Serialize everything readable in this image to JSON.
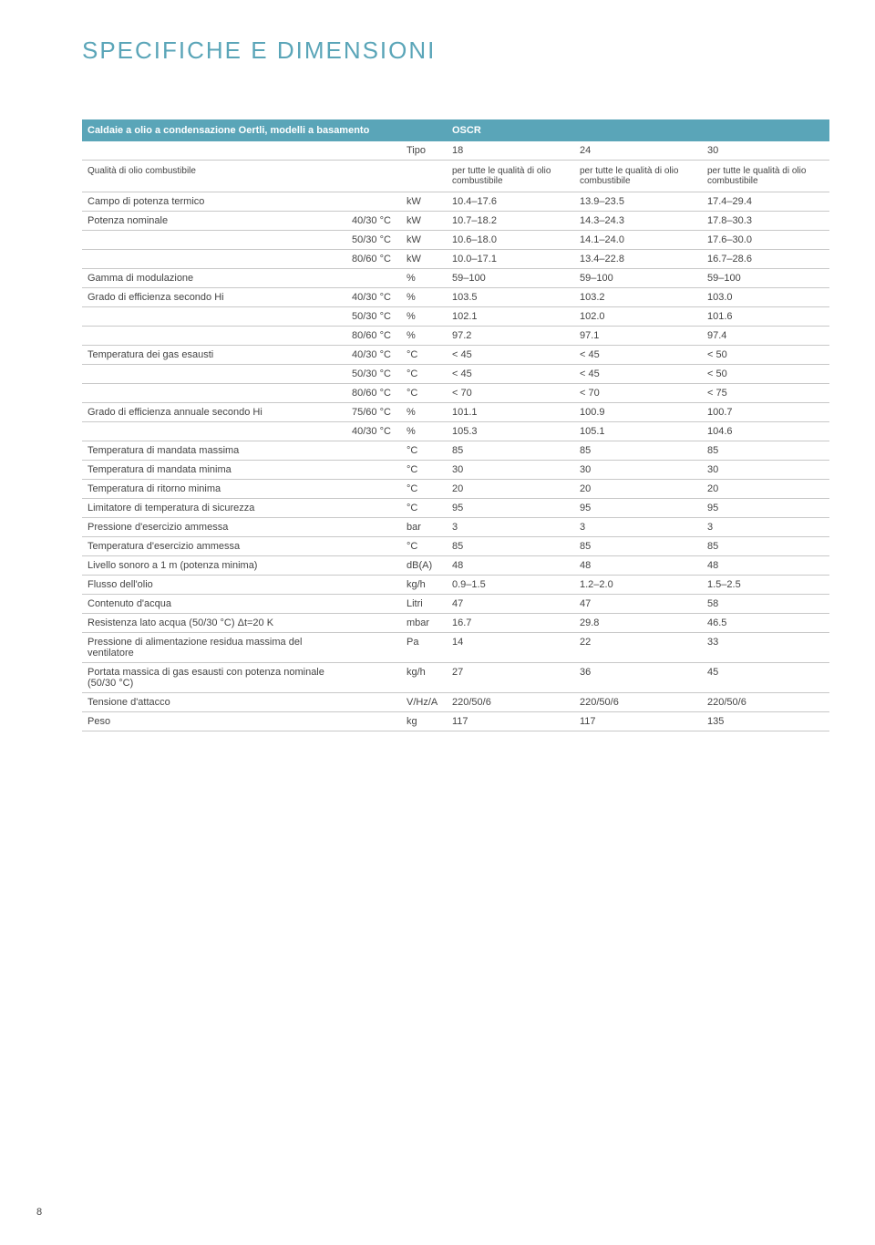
{
  "title": "SPECIFICHE E DIMENSIONI",
  "page_number": "8",
  "colors": {
    "accent": "#5aa5b8",
    "header_text": "#ffffff",
    "text": "#444444",
    "border": "#c8c8c8",
    "background": "#ffffff"
  },
  "table": {
    "header_left": "Caldaie a olio a condensazione Oertli, modelli a basamento",
    "header_right": "OSCR",
    "tipo_label": "Tipo",
    "tipo_values": [
      "18",
      "24",
      "30"
    ],
    "qualita_left": "Qualità di olio combustibile",
    "qualita_cell": "per tutte le qualità di olio combustibile",
    "rows": [
      {
        "label": "Campo di potenza termico",
        "cond": "",
        "unit": "kW",
        "v1": "10.4–17.6",
        "v2": "13.9–23.5",
        "v3": "17.4–29.4"
      },
      {
        "label": "Potenza nominale",
        "cond": "40/30 °C",
        "unit": "kW",
        "v1": "10.7–18.2",
        "v2": "14.3–24.3",
        "v3": "17.8–30.3"
      },
      {
        "label": "",
        "cond": "50/30 °C",
        "unit": "kW",
        "v1": "10.6–18.0",
        "v2": "14.1–24.0",
        "v3": "17.6–30.0"
      },
      {
        "label": "",
        "cond": "80/60 °C",
        "unit": "kW",
        "v1": "10.0–17.1",
        "v2": "13.4–22.8",
        "v3": "16.7–28.6"
      },
      {
        "label": "Gamma di modulazione",
        "cond": "",
        "unit": "%",
        "v1": "59–100",
        "v2": "59–100",
        "v3": "59–100"
      },
      {
        "label": "Grado di efficienza secondo Hi",
        "cond": "40/30 °C",
        "unit": "%",
        "v1": "103.5",
        "v2": "103.2",
        "v3": "103.0"
      },
      {
        "label": "",
        "cond": "50/30 °C",
        "unit": "%",
        "v1": "102.1",
        "v2": "102.0",
        "v3": "101.6"
      },
      {
        "label": "",
        "cond": "80/60 °C",
        "unit": "%",
        "v1": "97.2",
        "v2": "97.1",
        "v3": "97.4"
      },
      {
        "label": "Temperatura dei gas esausti",
        "cond": "40/30 °C",
        "unit": "°C",
        "v1": "< 45",
        "v2": "< 45",
        "v3": "< 50"
      },
      {
        "label": "",
        "cond": "50/30 °C",
        "unit": "°C",
        "v1": "< 45",
        "v2": "< 45",
        "v3": "< 50"
      },
      {
        "label": "",
        "cond": "80/60 °C",
        "unit": "°C",
        "v1": "< 70",
        "v2": "< 70",
        "v3": "< 75"
      },
      {
        "label": "Grado di efficienza annuale secondo Hi",
        "cond": "75/60 °C",
        "unit": "%",
        "v1": "101.1",
        "v2": "100.9",
        "v3": "100.7"
      },
      {
        "label": "",
        "cond": "40/30 °C",
        "unit": "%",
        "v1": "105.3",
        "v2": "105.1",
        "v3": "104.6"
      },
      {
        "label": "Temperatura di mandata massima",
        "cond": "",
        "unit": "°C",
        "v1": "85",
        "v2": "85",
        "v3": "85"
      },
      {
        "label": "Temperatura di mandata minima",
        "cond": "",
        "unit": "°C",
        "v1": "30",
        "v2": "30",
        "v3": "30"
      },
      {
        "label": "Temperatura di ritorno minima",
        "cond": "",
        "unit": "°C",
        "v1": "20",
        "v2": "20",
        "v3": "20"
      },
      {
        "label": "Limitatore di temperatura di sicurezza",
        "cond": "",
        "unit": "°C",
        "v1": "95",
        "v2": "95",
        "v3": "95"
      },
      {
        "label": "Pressione d'esercizio ammessa",
        "cond": "",
        "unit": "bar",
        "v1": "3",
        "v2": "3",
        "v3": "3"
      },
      {
        "label": "Temperatura d'esercizio ammessa",
        "cond": "",
        "unit": "°C",
        "v1": "85",
        "v2": "85",
        "v3": "85"
      },
      {
        "label": "Livello sonoro a 1 m (potenza minima)",
        "cond": "",
        "unit": "dB(A)",
        "v1": "48",
        "v2": "48",
        "v3": "48"
      },
      {
        "label": "Flusso dell'olio",
        "cond": "",
        "unit": "kg/h",
        "v1": "0.9–1.5",
        "v2": "1.2–2.0",
        "v3": "1.5–2.5"
      },
      {
        "label": "Contenuto d'acqua",
        "cond": "",
        "unit": "Litri",
        "v1": "47",
        "v2": "47",
        "v3": "58"
      },
      {
        "label": "Resistenza lato acqua (50/30 °C) Δt=20 K",
        "cond": "",
        "unit": "mbar",
        "v1": "16.7",
        "v2": "29.8",
        "v3": "46.5"
      },
      {
        "label": "Pressione di alimentazione residua massima del ventilatore",
        "cond": "",
        "unit": "Pa",
        "v1": "14",
        "v2": "22",
        "v3": "33"
      },
      {
        "label": "Portata massica di gas esausti con potenza nominale (50/30 °C)",
        "cond": "",
        "unit": "kg/h",
        "v1": "27",
        "v2": "36",
        "v3": "45"
      },
      {
        "label": "Tensione d'attacco",
        "cond": "",
        "unit": "V/Hz/A",
        "v1": "220/50/6",
        "v2": "220/50/6",
        "v3": "220/50/6"
      },
      {
        "label": "Peso",
        "cond": "",
        "unit": "kg",
        "v1": "117",
        "v2": "117",
        "v3": "135"
      }
    ]
  }
}
